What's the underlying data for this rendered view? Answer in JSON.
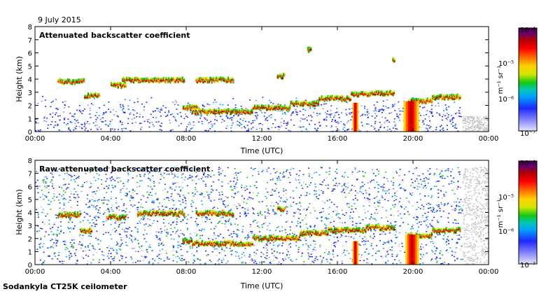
{
  "date": "9 July 2015",
  "instrument": "Sodankyla CT25K ceilometer",
  "colorbar_unit": "m⁻¹ sr⁻¹",
  "colors": {
    "colormap": [
      "#e4e4ff",
      "#8c8cff",
      "#1e28ff",
      "#00a0ff",
      "#00c8b4",
      "#14c814",
      "#d2e600",
      "#ffd200",
      "#ff6400",
      "#ff0000",
      "#b40000",
      "#64006e",
      "#460046"
    ],
    "gray_noise": "#c8c8c8"
  },
  "chart_data": [
    {
      "type": "heatmap",
      "title": "Attenuated backscatter coefficient",
      "xlabel": "Time (UTC)",
      "ylabel": "Height (km)",
      "x_ticks": [
        "00:00",
        "04:00",
        "08:00",
        "12:00",
        "16:00",
        "20:00",
        "00:00"
      ],
      "y_ticks": [
        "0",
        "1",
        "2",
        "3",
        "4",
        "5",
        "6",
        "7",
        "8"
      ],
      "xlim_hours": [
        0,
        24
      ],
      "ylim_km": [
        0,
        8
      ],
      "colorbar": {
        "scale": "log",
        "min_label": "10⁻⁷",
        "ticks": [
          "10⁻⁷",
          "10⁻⁶",
          "10⁻⁵",
          "10⁻⁴"
        ]
      },
      "cloud_layers": [
        {
          "t0": 1.2,
          "t1": 2.6,
          "h": 3.8
        },
        {
          "t0": 2.6,
          "t1": 3.4,
          "h": 2.7
        },
        {
          "t0": 4.0,
          "t1": 4.8,
          "h": 3.5
        },
        {
          "t0": 4.6,
          "t1": 5.4,
          "h": 3.9
        },
        {
          "t0": 5.4,
          "t1": 7.9,
          "h": 3.9
        },
        {
          "t0": 8.5,
          "t1": 10.5,
          "h": 3.9
        },
        {
          "t0": 7.8,
          "t1": 8.6,
          "h": 1.8
        },
        {
          "t0": 8.3,
          "t1": 11.5,
          "h": 1.5
        },
        {
          "t0": 11.5,
          "t1": 13.5,
          "h": 1.8
        },
        {
          "t0": 13.5,
          "t1": 15.0,
          "h": 2.1
        },
        {
          "t0": 15.0,
          "t1": 16.7,
          "h": 2.5
        },
        {
          "t0": 16.7,
          "t1": 17.7,
          "h": 2.8
        },
        {
          "t0": 17.7,
          "t1": 19.0,
          "h": 2.9
        },
        {
          "t0": 19.7,
          "t1": 21.0,
          "h": 2.3
        },
        {
          "t0": 21.0,
          "t1": 22.5,
          "h": 2.6
        },
        {
          "t0": 12.8,
          "t1": 13.2,
          "h": 4.2
        },
        {
          "t0": 14.4,
          "t1": 14.6,
          "h": 6.2
        },
        {
          "t0": 18.9,
          "t1": 19.0,
          "h": 5.5
        }
      ],
      "precipitation": [
        {
          "t0": 16.8,
          "t1": 17.1,
          "h": 2.2
        },
        {
          "t0": 19.5,
          "t1": 20.3,
          "h": 2.3
        }
      ]
    },
    {
      "type": "heatmap",
      "title": "Raw attenuated backscatter coefficient",
      "xlabel": "Time (UTC)",
      "ylabel": "Height (km)",
      "x_ticks": [
        "00:00",
        "04:00",
        "08:00",
        "12:00",
        "16:00",
        "20:00",
        "00:00"
      ],
      "y_ticks": [
        "0",
        "1",
        "2",
        "3",
        "4",
        "5",
        "6",
        "7",
        "8"
      ],
      "xlim_hours": [
        0,
        24
      ],
      "ylim_km": [
        0,
        8
      ],
      "colorbar": {
        "scale": "log",
        "min_label": "10⁻⁷",
        "ticks": [
          "10⁻⁷",
          "10⁻⁶",
          "10⁻⁵",
          "10⁻⁴"
        ]
      },
      "cloud_layers": [
        {
          "t0": 1.2,
          "t1": 2.4,
          "h": 3.8
        },
        {
          "t0": 2.4,
          "t1": 3.0,
          "h": 2.6
        },
        {
          "t0": 3.8,
          "t1": 4.8,
          "h": 3.6
        },
        {
          "t0": 5.4,
          "t1": 7.9,
          "h": 3.9
        },
        {
          "t0": 8.5,
          "t1": 10.5,
          "h": 3.9
        },
        {
          "t0": 7.8,
          "t1": 8.3,
          "h": 1.8
        },
        {
          "t0": 8.3,
          "t1": 11.5,
          "h": 1.6
        },
        {
          "t0": 11.5,
          "t1": 14.0,
          "h": 2.0
        },
        {
          "t0": 14.0,
          "t1": 15.5,
          "h": 2.4
        },
        {
          "t0": 15.5,
          "t1": 17.5,
          "h": 2.6
        },
        {
          "t0": 17.5,
          "t1": 19.0,
          "h": 2.8
        },
        {
          "t0": 19.7,
          "t1": 21.0,
          "h": 2.2
        },
        {
          "t0": 21.0,
          "t1": 22.5,
          "h": 2.6
        },
        {
          "t0": 12.8,
          "t1": 13.2,
          "h": 4.2
        }
      ],
      "precipitation": [
        {
          "t0": 16.8,
          "t1": 17.1,
          "h": 1.8
        },
        {
          "t0": 19.6,
          "t1": 20.3,
          "h": 2.3
        }
      ]
    }
  ]
}
